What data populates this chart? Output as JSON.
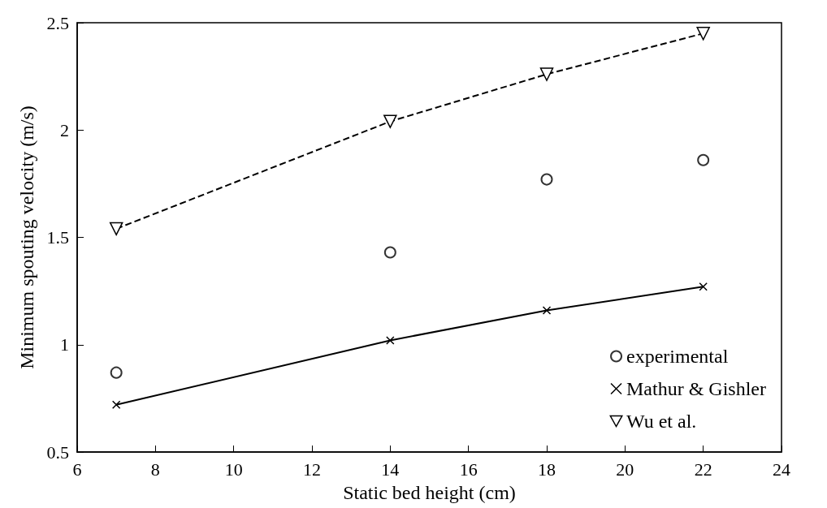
{
  "chart_data": {
    "type": "line",
    "xlabel": "Static bed height (cm)",
    "ylabel": "Minimum spouting velocity (m/s)",
    "x": [
      7,
      14,
      18,
      22
    ],
    "series": [
      {
        "name": "experimental",
        "type": "scatter",
        "color": "#000000",
        "marker": "circle",
        "values": [
          0.87,
          1.43,
          1.77,
          1.86
        ]
      },
      {
        "name": "Mathur & Gishler",
        "color": "#000000",
        "marker": "cross",
        "line_style": "solid",
        "values": [
          0.72,
          1.02,
          1.16,
          1.27
        ]
      },
      {
        "name": "Wu et al.",
        "color": "#000000",
        "marker": "triangle",
        "line_style": "dashed",
        "values": [
          1.54,
          2.04,
          2.26,
          2.45
        ]
      }
    ],
    "xlim": [
      6,
      24
    ],
    "xticks": [
      6,
      8,
      10,
      12,
      14,
      16,
      18,
      20,
      22,
      24
    ],
    "ylim": [
      0.5,
      2.5
    ],
    "yticks": [
      0.5,
      1,
      1.5,
      2,
      2.5
    ],
    "grid": false,
    "legend": "bottom right"
  }
}
